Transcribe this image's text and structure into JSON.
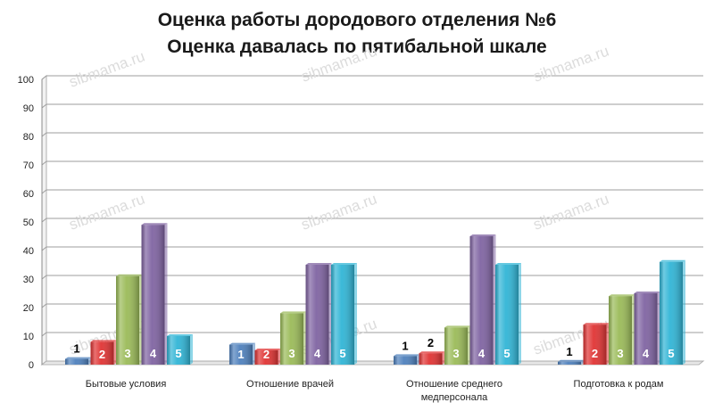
{
  "chart_data": {
    "type": "bar",
    "title": "Оценка работы дородового отделения №6",
    "subtitle": "Оценка давалась по пятибальной шкале",
    "xlabel": "",
    "ylabel": "",
    "ylim": [
      0,
      100
    ],
    "yticks": [
      0,
      10,
      20,
      30,
      40,
      50,
      60,
      70,
      80,
      90,
      100
    ],
    "grid": true,
    "legend": "none",
    "categories": [
      [
        "Бытовые условия"
      ],
      [
        "Отношение врачей"
      ],
      [
        "Отношение среднего",
        "медперсонала"
      ],
      [
        "Подготовка к родам"
      ]
    ],
    "series": [
      {
        "name": "1",
        "color": "#4f81bd",
        "values": [
          2,
          7,
          3,
          1
        ]
      },
      {
        "name": "2",
        "color": "#e03434",
        "values": [
          8,
          5,
          4,
          14
        ]
      },
      {
        "name": "3",
        "color": "#9bbb59",
        "values": [
          31,
          18,
          13,
          24
        ]
      },
      {
        "name": "4",
        "color": "#8064a2",
        "values": [
          49,
          35,
          45,
          25
        ]
      },
      {
        "name": "5",
        "color": "#31b5d6",
        "values": [
          10,
          35,
          35,
          36
        ]
      }
    ],
    "watermark": "sibmama.ru"
  }
}
